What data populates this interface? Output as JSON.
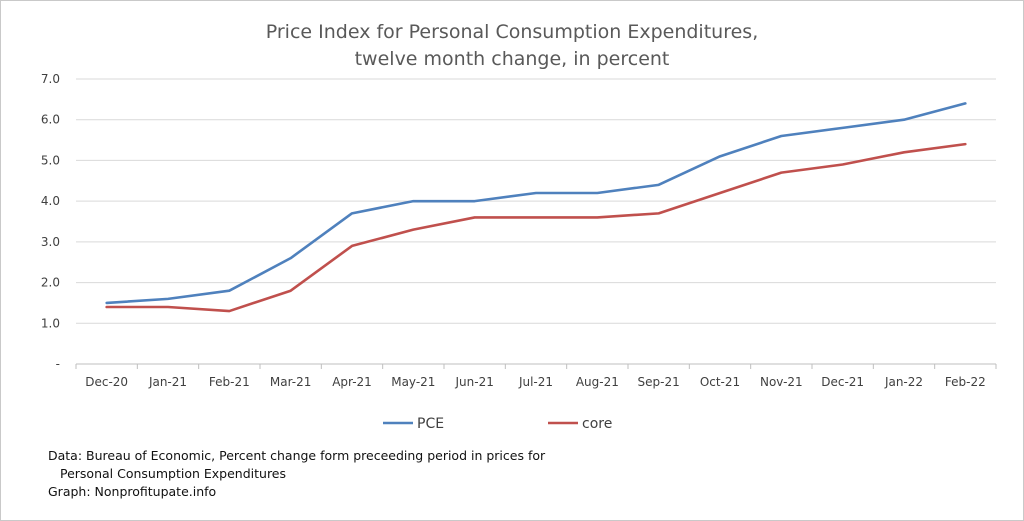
{
  "chart_data": {
    "type": "line",
    "title": [
      "Price Index for Personal Consumption Expenditures,",
      "twelve month change, in percent"
    ],
    "xlabel": "",
    "ylabel": "",
    "categories": [
      "Dec-20",
      "Jan-21",
      "Feb-21",
      "Mar-21",
      "Apr-21",
      "May-21",
      "Jun-21",
      "Jul-21",
      "Aug-21",
      "Sep-21",
      "Oct-21",
      "Nov-21",
      "Dec-21",
      "Jan-22",
      "Feb-22"
    ],
    "ylim": [
      0,
      7
    ],
    "yticks": [
      {
        "value": 0,
        "label": "-"
      },
      {
        "value": 1,
        "label": "1.0"
      },
      {
        "value": 2,
        "label": "2.0"
      },
      {
        "value": 3,
        "label": "3.0"
      },
      {
        "value": 4,
        "label": "4.0"
      },
      {
        "value": 5,
        "label": "5.0"
      },
      {
        "value": 6,
        "label": "6.0"
      },
      {
        "value": 7,
        "label": "7.0"
      }
    ],
    "grid": true,
    "legend_position": "bottom",
    "series": [
      {
        "name": "PCE",
        "color": "#4f81bd",
        "values": [
          1.5,
          1.6,
          1.8,
          2.6,
          3.7,
          4.0,
          4.0,
          4.2,
          4.2,
          4.4,
          5.1,
          5.6,
          5.8,
          6.0,
          6.4
        ]
      },
      {
        "name": "core",
        "color": "#c0504d",
        "values": [
          1.4,
          1.4,
          1.3,
          1.8,
          2.9,
          3.3,
          3.6,
          3.6,
          3.6,
          3.7,
          4.2,
          4.7,
          4.9,
          5.2,
          5.4
        ]
      }
    ]
  },
  "notes": {
    "line1": "Data: Bureau of Economic, Percent change form preceeding  period in prices for",
    "line2": "Personal Consumption Expenditures",
    "line3": "Graph:  Nonprofitupate.info"
  }
}
